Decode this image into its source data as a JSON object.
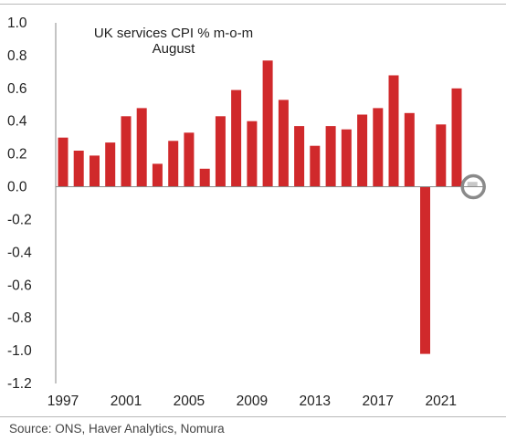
{
  "chart_data": {
    "type": "bar",
    "title": "UK services CPI % m-o-m",
    "subtitle": "August",
    "xlabel": "",
    "ylabel": "",
    "x": [
      1997,
      1998,
      1999,
      2000,
      2001,
      2002,
      2003,
      2004,
      2005,
      2006,
      2007,
      2008,
      2009,
      2010,
      2011,
      2012,
      2013,
      2014,
      2015,
      2016,
      2017,
      2018,
      2019,
      2020,
      2021,
      2022,
      2023
    ],
    "values": [
      0.3,
      0.22,
      0.19,
      0.27,
      0.43,
      0.48,
      0.14,
      0.28,
      0.33,
      0.11,
      0.43,
      0.59,
      0.4,
      0.77,
      0.53,
      0.37,
      0.25,
      0.37,
      0.35,
      0.44,
      0.48,
      0.68,
      0.45,
      -1.02,
      0.38,
      0.6,
      0.03
    ],
    "x_tick_labels": [
      "1997",
      "2001",
      "2005",
      "2009",
      "2013",
      "2017",
      "2021"
    ],
    "y_tick_labels": [
      "1.0",
      "0.8",
      "0.6",
      "0.4",
      "0.2",
      "0.0",
      "-0.2",
      "-0.4",
      "-0.6",
      "-0.8",
      "-1.0",
      "-1.2"
    ],
    "ylim": [
      -1.2,
      1.0
    ],
    "grid": false,
    "bar_color": "#d0292b",
    "highlight_bar_color": "#c8c8c8",
    "highlight_index": 26,
    "highlight_circle_color": "#8a8a8a",
    "axis_color": "#8a8a8a"
  },
  "source": "Source: ONS, Haver Analytics, Nomura"
}
